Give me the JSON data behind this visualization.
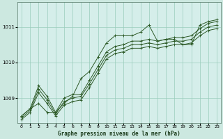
{
  "title": "Graphe pression niveau de la mer (hPa)",
  "bg_color": "#cce8e0",
  "plot_bg_color": "#d5eeea",
  "grid_color": "#99ccbb",
  "line_color": "#2d5a27",
  "ylim": [
    1008.3,
    1011.7
  ],
  "yticks": [
    1009,
    1010,
    1011
  ],
  "xlim": [
    -0.5,
    23.5
  ],
  "xticks": [
    0,
    1,
    2,
    3,
    4,
    5,
    6,
    7,
    8,
    9,
    10,
    11,
    12,
    13,
    14,
    15,
    16,
    17,
    18,
    19,
    20,
    21,
    22,
    23
  ],
  "line_zigzag": [
    1008.5,
    1008.7,
    1008.85,
    1008.6,
    1008.6,
    1008.85,
    1009.05,
    1009.55,
    1009.75,
    1010.15,
    1010.55,
    1010.75,
    1010.75,
    1010.75,
    1010.85,
    1011.05,
    1010.6,
    1010.65,
    1010.65,
    1010.5,
    1010.5,
    1011.05,
    1011.15,
    1011.2
  ],
  "line_a": [
    1008.5,
    1008.7,
    1009.35,
    1009.05,
    1008.6,
    1009.0,
    1009.1,
    1009.1,
    1009.5,
    1009.9,
    1010.3,
    1010.45,
    1010.5,
    1010.6,
    1010.6,
    1010.65,
    1010.6,
    1010.65,
    1010.7,
    1010.7,
    1010.75,
    1010.95,
    1011.1,
    1011.15
  ],
  "line_b": [
    1008.45,
    1008.65,
    1009.25,
    1008.95,
    1008.55,
    1008.9,
    1009.0,
    1009.05,
    1009.4,
    1009.8,
    1010.2,
    1010.35,
    1010.4,
    1010.5,
    1010.5,
    1010.55,
    1010.5,
    1010.55,
    1010.6,
    1010.6,
    1010.65,
    1010.85,
    1011.0,
    1011.05
  ],
  "line_c": [
    1008.4,
    1008.6,
    1009.15,
    1008.85,
    1008.5,
    1008.8,
    1008.9,
    1008.95,
    1009.3,
    1009.7,
    1010.1,
    1010.25,
    1010.3,
    1010.4,
    1010.4,
    1010.45,
    1010.4,
    1010.45,
    1010.5,
    1010.5,
    1010.55,
    1010.75,
    1010.9,
    1010.95
  ]
}
